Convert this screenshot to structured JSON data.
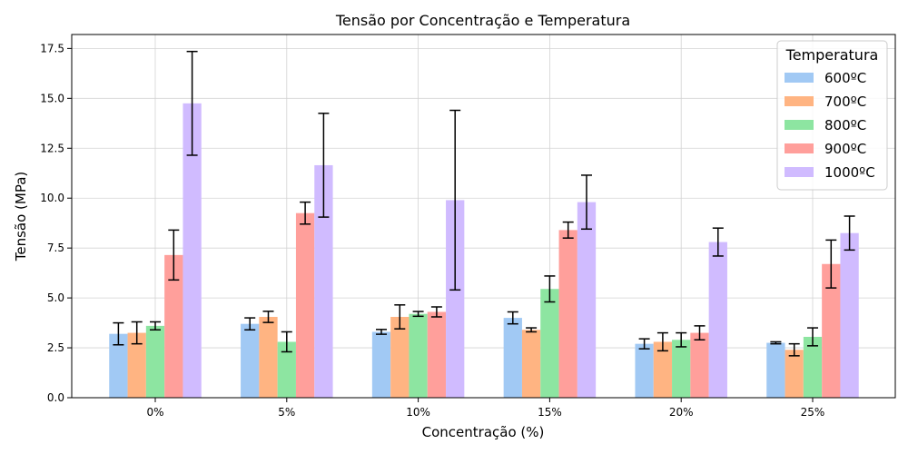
{
  "chart_data": {
    "type": "bar",
    "title": "Tensão por Concentração e Temperatura",
    "xlabel": "Concentração (%)",
    "ylabel": "Tensão (MPa)",
    "categories": [
      "0%",
      "5%",
      "10%",
      "15%",
      "20%",
      "25%"
    ],
    "ylim": [
      0,
      18.2
    ],
    "yticks": [
      "0.0",
      "2.5",
      "5.0",
      "7.5",
      "10.0",
      "12.5",
      "15.0",
      "17.5"
    ],
    "grid": true,
    "legend_title": "Temperatura",
    "legend_position": "top-right",
    "series": [
      {
        "name": "600ºC",
        "color": "#a1c9f4",
        "values": [
          3.2,
          3.7,
          3.3,
          4.0,
          2.7,
          2.75
        ],
        "errors": [
          0.55,
          0.3,
          0.12,
          0.3,
          0.25,
          0.05
        ]
      },
      {
        "name": "700ºC",
        "color": "#ffb482",
        "values": [
          3.25,
          4.05,
          4.05,
          3.4,
          2.8,
          2.4
        ],
        "errors": [
          0.55,
          0.28,
          0.6,
          0.1,
          0.45,
          0.3
        ]
      },
      {
        "name": "800ºC",
        "color": "#8de5a1",
        "values": [
          3.6,
          2.8,
          4.2,
          5.45,
          2.9,
          3.05
        ],
        "errors": [
          0.2,
          0.5,
          0.12,
          0.65,
          0.35,
          0.45
        ]
      },
      {
        "name": "900ºC",
        "color": "#ff9f9b",
        "values": [
          7.15,
          9.25,
          4.3,
          8.4,
          3.25,
          6.7
        ],
        "errors": [
          1.25,
          0.55,
          0.25,
          0.4,
          0.35,
          1.2
        ]
      },
      {
        "name": "1000ºC",
        "color": "#d0bbff",
        "values": [
          14.75,
          11.65,
          9.9,
          9.8,
          7.8,
          8.25
        ],
        "errors": [
          2.6,
          2.6,
          4.5,
          1.35,
          0.7,
          0.85
        ]
      }
    ]
  }
}
